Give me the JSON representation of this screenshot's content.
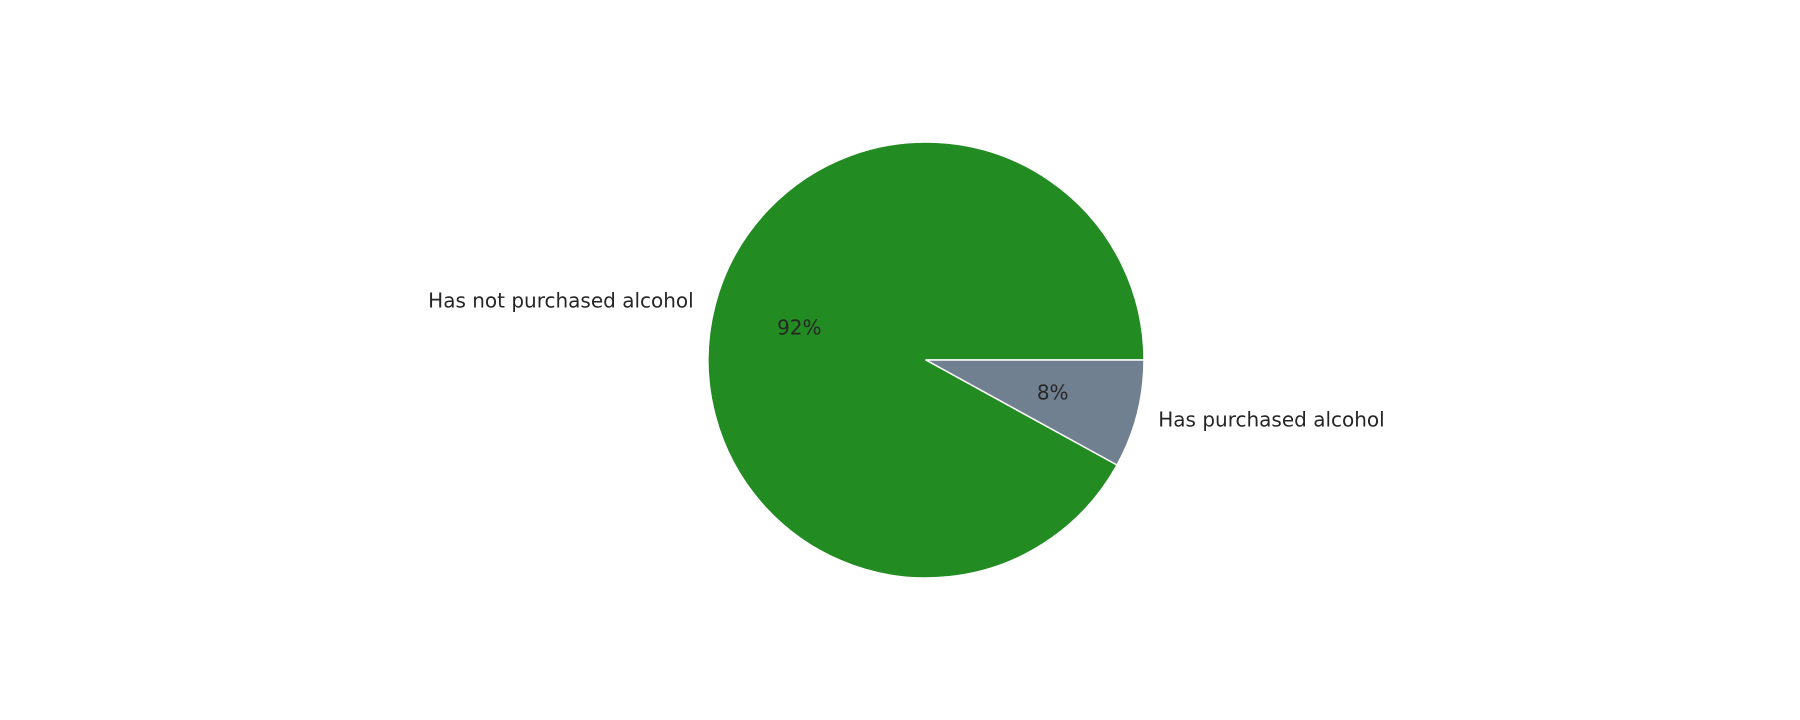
{
  "chart_data": {
    "type": "pie",
    "title": "",
    "categories": [
      "Has not purchased alcohol",
      "Has purchased alcohol"
    ],
    "values": [
      92,
      8
    ],
    "value_labels": [
      "92%",
      "8%"
    ],
    "colors": [
      "#228B22",
      "#708090"
    ],
    "start_angle_deg": 0,
    "direction": "counterclockwise",
    "slice_edge_color": "#ffffff",
    "legend": "none"
  }
}
